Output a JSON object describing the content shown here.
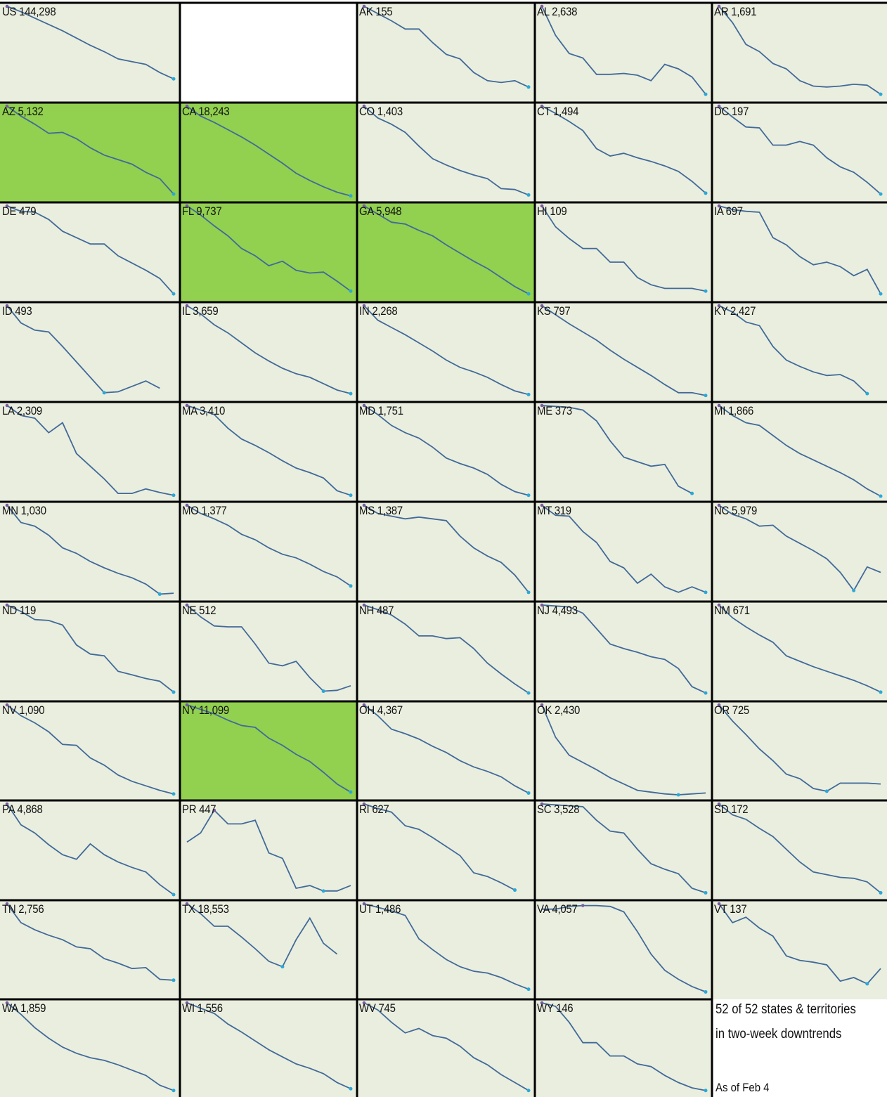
{
  "colors": {
    "panel_bg": "#eaeedf",
    "highlight_bg": "#92d050",
    "line": "#416a99",
    "end_marker": "#29a9d9",
    "start_marker": "#7a5aa0",
    "gridline": "#000000"
  },
  "summary": {
    "line1": "52 of 52 states & territories",
    "line2": "in two-week downtrends",
    "as_of": "As of Feb 4"
  },
  "chart_data": {
    "type": "line",
    "layout": "small-multiples",
    "columns": 5,
    "panels": [
      {
        "state": "US",
        "label": "US 144,298",
        "highlight": false,
        "values": [
          100,
          94,
          87,
          80,
          73,
          65,
          57,
          50,
          42,
          39,
          36,
          27,
          20
        ]
      },
      {
        "state": null,
        "label": "",
        "blank": true
      },
      {
        "state": "AK",
        "label": "AK 155",
        "highlight": false,
        "values": [
          100,
          92,
          84,
          75,
          75,
          60,
          47,
          42,
          27,
          18,
          16,
          18,
          11
        ]
      },
      {
        "state": "AL",
        "label": "AL 2,638",
        "highlight": false,
        "values": [
          100,
          68,
          48,
          43,
          25,
          25,
          26,
          24,
          18,
          36,
          31,
          22,
          3
        ]
      },
      {
        "state": "AR",
        "label": "AR 1,691",
        "highlight": false,
        "values": [
          100,
          82,
          58,
          50,
          37,
          31,
          18,
          12,
          11,
          12,
          14,
          13,
          3
        ]
      },
      {
        "state": "AZ",
        "label": "AZ 5,132",
        "highlight": true,
        "values": [
          100,
          89,
          80,
          70,
          71,
          64,
          54,
          46,
          41,
          36,
          27,
          20,
          3
        ]
      },
      {
        "state": "CA",
        "label": "CA 18,243",
        "highlight": true,
        "values": [
          100,
          89,
          82,
          74,
          66,
          57,
          47,
          37,
          26,
          18,
          11,
          5,
          1
        ]
      },
      {
        "state": "CO",
        "label": "CO 1,403",
        "highlight": false,
        "values": [
          100,
          87,
          80,
          71,
          56,
          42,
          35,
          29,
          24,
          20,
          9,
          8,
          2
        ]
      },
      {
        "state": "CT",
        "label": "CT 1,494",
        "highlight": false,
        "values": [
          100,
          92,
          83,
          73,
          53,
          45,
          48,
          43,
          39,
          34,
          28,
          17,
          4
        ]
      },
      {
        "state": "DC",
        "label": "DC 197",
        "highlight": false,
        "values": [
          100,
          88,
          77,
          76,
          57,
          57,
          61,
          57,
          43,
          33,
          27,
          16,
          3
        ]
      },
      {
        "state": "DE",
        "label": "DE 479",
        "highlight": false,
        "values": [
          100,
          94,
          93,
          85,
          72,
          65,
          58,
          58,
          45,
          37,
          29,
          20,
          3
        ]
      },
      {
        "state": "FL",
        "label": "FL 9,737",
        "highlight": true,
        "values": [
          100,
          90,
          78,
          67,
          53,
          45,
          34,
          39,
          29,
          26,
          27,
          17,
          6
        ]
      },
      {
        "state": "GA",
        "label": "GA 5,948",
        "highlight": true,
        "values": [
          100,
          91,
          82,
          80,
          73,
          67,
          57,
          48,
          39,
          31,
          21,
          11,
          3
        ]
      },
      {
        "state": "HI",
        "label": "HI 109",
        "highlight": false,
        "values": [
          100,
          77,
          64,
          53,
          53,
          38,
          38,
          21,
          13,
          9,
          9,
          9,
          6
        ]
      },
      {
        "state": "IA",
        "label": "IA 697",
        "highlight": false,
        "values": [
          100,
          96,
          94,
          93,
          65,
          57,
          44,
          35,
          38,
          33,
          23,
          30,
          3
        ]
      },
      {
        "state": "ID",
        "label": "ID 493",
        "highlight": false,
        "values": [
          100,
          81,
          73,
          71,
          55,
          38,
          21,
          4,
          5,
          11,
          17,
          9,
          null
        ]
      },
      {
        "state": "IL",
        "label": "IL 3,659",
        "highlight": false,
        "values": [
          100,
          91,
          79,
          70,
          59,
          48,
          39,
          31,
          25,
          21,
          14,
          7,
          3
        ]
      },
      {
        "state": "IN",
        "label": "IN 2,268",
        "highlight": false,
        "values": [
          100,
          84,
          76,
          68,
          59,
          50,
          40,
          32,
          27,
          21,
          13,
          6,
          2
        ]
      },
      {
        "state": "KS",
        "label": "KS 797",
        "highlight": false,
        "values": [
          100,
          90,
          80,
          71,
          62,
          51,
          41,
          32,
          23,
          13,
          4,
          4,
          1
        ]
      },
      {
        "state": "KY",
        "label": "KY 2,427",
        "highlight": false,
        "values": [
          100,
          93,
          82,
          78,
          55,
          40,
          33,
          27,
          23,
          24,
          17,
          3,
          null
        ]
      },
      {
        "state": "LA",
        "label": "LA 2,309",
        "highlight": false,
        "values": [
          100,
          89,
          86,
          70,
          81,
          47,
          33,
          19,
          3,
          3,
          8,
          4,
          1
        ]
      },
      {
        "state": "MA",
        "label": "MA 3,410",
        "highlight": false,
        "values": [
          100,
          95,
          90,
          75,
          63,
          56,
          48,
          39,
          31,
          26,
          20,
          6,
          1
        ]
      },
      {
        "state": "MD",
        "label": "MD 1,751",
        "highlight": false,
        "values": [
          100,
          90,
          78,
          70,
          64,
          54,
          42,
          36,
          31,
          24,
          13,
          5,
          1
        ]
      },
      {
        "state": "ME",
        "label": "ME 373",
        "highlight": false,
        "values": [
          100,
          99,
          98,
          95,
          83,
          61,
          43,
          38,
          33,
          35,
          11,
          3,
          null
        ]
      },
      {
        "state": "MI",
        "label": "MI 1,866",
        "highlight": false,
        "values": [
          100,
          89,
          81,
          78,
          67,
          56,
          47,
          40,
          33,
          26,
          18,
          8,
          0
        ]
      },
      {
        "state": "MN",
        "label": "MN 1,030",
        "highlight": false,
        "values": [
          100,
          81,
          77,
          67,
          53,
          47,
          38,
          31,
          25,
          20,
          13,
          2,
          3
        ]
      },
      {
        "state": "MO",
        "label": "MO 1,377",
        "highlight": false,
        "values": [
          100,
          91,
          85,
          78,
          68,
          62,
          53,
          46,
          42,
          35,
          27,
          21,
          11
        ]
      },
      {
        "state": "MS",
        "label": "MS 1,387",
        "highlight": false,
        "values": [
          100,
          91,
          88,
          85,
          87,
          85,
          83,
          66,
          53,
          44,
          37,
          23,
          4
        ]
      },
      {
        "state": "MT",
        "label": "MT 319",
        "highlight": false,
        "values": [
          100,
          89,
          88,
          71,
          59,
          38,
          31,
          14,
          24,
          10,
          4,
          10,
          4
        ]
      },
      {
        "state": "NC",
        "label": "NC 5,979",
        "highlight": false,
        "values": [
          100,
          90,
          85,
          77,
          78,
          66,
          58,
          50,
          41,
          26,
          6,
          32,
          26
        ]
      },
      {
        "state": "ND",
        "label": "ND 119",
        "highlight": false,
        "values": [
          100,
          93,
          84,
          83,
          78,
          56,
          46,
          44,
          27,
          23,
          19,
          16,
          4
        ]
      },
      {
        "state": "NE",
        "label": "NE 512",
        "highlight": false,
        "values": [
          100,
          87,
          77,
          76,
          76,
          57,
          36,
          33,
          38,
          20,
          5,
          6,
          11
        ]
      },
      {
        "state": "NH",
        "label": "NH 487",
        "highlight": false,
        "values": [
          100,
          95,
          89,
          79,
          66,
          66,
          63,
          64,
          52,
          36,
          24,
          13,
          3
        ]
      },
      {
        "state": "NJ",
        "label": "NJ 4,493",
        "highlight": false,
        "values": [
          100,
          99,
          98,
          91,
          74,
          57,
          52,
          48,
          43,
          40,
          30,
          10,
          3
        ]
      },
      {
        "state": "NM",
        "label": "NM 671",
        "highlight": false,
        "values": [
          100,
          86,
          76,
          67,
          59,
          44,
          38,
          32,
          27,
          22,
          17,
          11,
          4
        ]
      },
      {
        "state": "NV",
        "label": "NV 1,090",
        "highlight": false,
        "values": [
          100,
          88,
          80,
          70,
          56,
          55,
          41,
          33,
          22,
          15,
          10,
          5,
          1
        ]
      },
      {
        "state": "NY",
        "label": "NY 11,099",
        "highlight": true,
        "values": [
          100,
          95,
          90,
          83,
          77,
          75,
          63,
          55,
          45,
          37,
          25,
          12,
          3
        ]
      },
      {
        "state": "OH",
        "label": "OH 4,367",
        "highlight": false,
        "values": [
          100,
          88,
          73,
          68,
          62,
          54,
          47,
          38,
          31,
          26,
          20,
          10,
          2
        ]
      },
      {
        "state": "OK",
        "label": "OK 2,430",
        "highlight": false,
        "values": [
          100,
          64,
          44,
          36,
          28,
          19,
          12,
          5,
          3,
          1,
          0,
          1,
          2
        ]
      },
      {
        "state": "OR",
        "label": "OR 725",
        "highlight": false,
        "values": [
          100,
          82,
          67,
          51,
          38,
          23,
          18,
          7,
          4,
          13,
          13,
          13,
          12
        ]
      },
      {
        "state": "PA",
        "label": "PA 4,868",
        "highlight": false,
        "values": [
          100,
          77,
          68,
          55,
          44,
          39,
          56,
          44,
          36,
          30,
          25,
          11,
          0
        ]
      },
      {
        "state": "PR",
        "label": "PR 447",
        "highlight": false,
        "values": [
          58,
          68,
          93,
          78,
          78,
          82,
          46,
          40,
          7,
          10,
          4,
          4,
          10
        ]
      },
      {
        "state": "RI",
        "label": "RI 627",
        "highlight": false,
        "values": [
          100,
          95,
          91,
          76,
          72,
          63,
          53,
          43,
          24,
          20,
          13,
          5,
          null
        ]
      },
      {
        "state": "SC",
        "label": "SC 3,528",
        "highlight": false,
        "values": [
          100,
          99,
          98,
          97,
          82,
          70,
          68,
          50,
          34,
          28,
          23,
          7,
          2
        ]
      },
      {
        "state": "SD",
        "label": "SD 172",
        "highlight": false,
        "values": [
          100,
          88,
          83,
          73,
          64,
          50,
          36,
          25,
          22,
          19,
          18,
          14,
          2
        ]
      },
      {
        "state": "TN",
        "label": "TN 2,756",
        "highlight": false,
        "values": [
          100,
          79,
          71,
          65,
          60,
          52,
          50,
          39,
          34,
          28,
          29,
          16,
          15
        ]
      },
      {
        "state": "TX",
        "label": "TX 18,553",
        "highlight": false,
        "values": [
          100,
          89,
          75,
          75,
          63,
          50,
          36,
          30,
          60,
          84,
          56,
          44,
          null
        ]
      },
      {
        "state": "UT",
        "label": "UT 1,486",
        "highlight": false,
        "values": [
          100,
          96,
          92,
          87,
          61,
          49,
          38,
          30,
          25,
          23,
          18,
          11,
          5
        ]
      },
      {
        "state": "VA",
        "label": "VA 4,057",
        "highlight": false,
        "values": [
          94,
          94,
          97,
          98,
          98,
          97,
          91,
          69,
          44,
          26,
          16,
          8,
          2
        ]
      },
      {
        "state": "VT",
        "label": "VT 137",
        "highlight": false,
        "values": [
          100,
          79,
          85,
          73,
          64,
          42,
          37,
          35,
          32,
          14,
          18,
          11,
          28
        ]
      },
      {
        "state": "WA",
        "label": "WA 1,859",
        "highlight": false,
        "values": [
          100,
          87,
          72,
          60,
          50,
          43,
          38,
          35,
          30,
          24,
          18,
          7,
          1
        ]
      },
      {
        "state": "WI",
        "label": "WI 1,556",
        "highlight": false,
        "values": [
          100,
          94,
          88,
          76,
          67,
          57,
          47,
          39,
          31,
          26,
          20,
          10,
          3
        ]
      },
      {
        "state": "WV",
        "label": "WV 745",
        "highlight": false,
        "values": [
          100,
          92,
          78,
          66,
          71,
          63,
          60,
          51,
          38,
          30,
          19,
          10,
          1
        ]
      },
      {
        "state": "WY",
        "label": "WY 146",
        "highlight": false,
        "values": [
          100,
          96,
          78,
          55,
          55,
          40,
          40,
          31,
          28,
          18,
          10,
          4,
          1
        ]
      }
    ]
  }
}
